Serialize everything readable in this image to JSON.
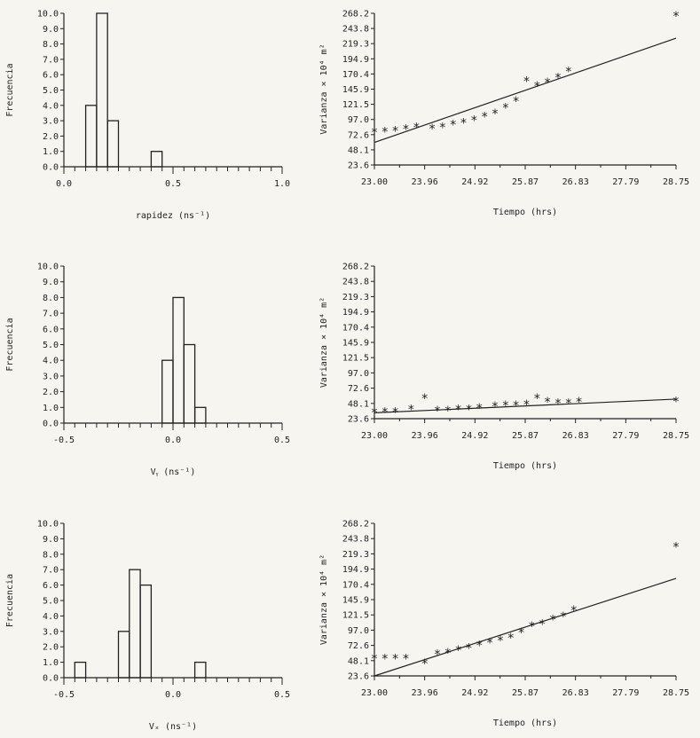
{
  "chart_data": [
    {
      "id": "h1",
      "type": "bar",
      "ylabel": "Frecuencia",
      "xlabel": "rapidez (ns⁻¹)",
      "xlim": [
        0.0,
        1.0
      ],
      "ylim": [
        0.0,
        10.0
      ],
      "xticks": [
        "0.0",
        "0.5",
        "1.0"
      ],
      "xtick_values": [
        0.0,
        0.5,
        1.0
      ],
      "yticks": [
        "0.0",
        "1.0",
        "2.0",
        "3.0",
        "4.0",
        "5.0",
        "6.0",
        "7.0",
        "8.0",
        "9.0",
        "10.0"
      ],
      "bin_width": 0.05,
      "bins": [
        {
          "x0": 0.1,
          "count": 4
        },
        {
          "x0": 0.15,
          "count": 10
        },
        {
          "x0": 0.2,
          "count": 3
        },
        {
          "x0": 0.4,
          "count": 1
        }
      ]
    },
    {
      "id": "s1",
      "type": "scatter",
      "ylabel": "Varianza × 10⁴ m²",
      "xlabel": "Tiempo (hrs)",
      "xlim": [
        23.0,
        28.75
      ],
      "ylim": [
        23.6,
        268.2
      ],
      "xticks": [
        "23.00",
        "23.96",
        "24.92",
        "25.87",
        "26.83",
        "27.79",
        "28.75"
      ],
      "yticks": [
        "23.6",
        "48.1",
        "72.6",
        "97.0",
        "121.5",
        "145.9",
        "170.4",
        "194.9",
        "219.3",
        "243.8",
        "268.2"
      ],
      "points": [
        [
          23.0,
          78
        ],
        [
          23.2,
          79
        ],
        [
          23.4,
          80
        ],
        [
          23.6,
          83
        ],
        [
          23.8,
          86
        ],
        [
          24.1,
          84
        ],
        [
          24.3,
          86
        ],
        [
          24.5,
          90
        ],
        [
          24.7,
          93
        ],
        [
          24.9,
          97
        ],
        [
          25.1,
          103
        ],
        [
          25.3,
          108
        ],
        [
          25.5,
          117
        ],
        [
          25.7,
          128
        ],
        [
          25.9,
          160
        ],
        [
          26.1,
          152
        ],
        [
          26.3,
          158
        ],
        [
          26.5,
          166
        ],
        [
          26.7,
          176
        ],
        [
          28.75,
          265
        ]
      ],
      "fit": [
        [
          23.0,
          60
        ],
        [
          28.75,
          228
        ]
      ]
    },
    {
      "id": "h2",
      "type": "bar",
      "ylabel": "Frecuencia",
      "xlabel": "Vᵧ (ns⁻¹)",
      "xlim": [
        -0.5,
        0.5
      ],
      "ylim": [
        0.0,
        10.0
      ],
      "xticks": [
        "-0.5",
        "0.0",
        "0.5"
      ],
      "xtick_values": [
        -0.5,
        0.0,
        0.5
      ],
      "yticks": [
        "0.0",
        "1.0",
        "2.0",
        "3.0",
        "4.0",
        "5.0",
        "6.0",
        "7.0",
        "8.0",
        "9.0",
        "10.0"
      ],
      "bin_width": 0.05,
      "bins": [
        {
          "x0": -0.05,
          "count": 4
        },
        {
          "x0": 0.0,
          "count": 8
        },
        {
          "x0": 0.05,
          "count": 5
        },
        {
          "x0": 0.1,
          "count": 1
        }
      ]
    },
    {
      "id": "s2",
      "type": "scatter",
      "ylabel": "Varianza × 10⁴ m²",
      "xlabel": "Tiempo (hrs)",
      "xlim": [
        23.0,
        28.75
      ],
      "ylim": [
        23.6,
        268.2
      ],
      "xticks": [
        "23.00",
        "23.96",
        "24.92",
        "25.87",
        "26.83",
        "27.79",
        "28.75"
      ],
      "yticks": [
        "23.6",
        "48.1",
        "72.6",
        "97.0",
        "121.5",
        "145.9",
        "170.4",
        "194.9",
        "219.3",
        "243.8",
        "268.2"
      ],
      "points": [
        [
          23.0,
          35
        ],
        [
          23.2,
          36
        ],
        [
          23.4,
          36
        ],
        [
          23.7,
          40
        ],
        [
          23.96,
          58
        ],
        [
          24.2,
          38
        ],
        [
          24.4,
          38
        ],
        [
          24.6,
          40
        ],
        [
          24.8,
          40
        ],
        [
          25.0,
          42
        ],
        [
          25.3,
          45
        ],
        [
          25.5,
          46
        ],
        [
          25.7,
          46
        ],
        [
          25.9,
          48
        ],
        [
          26.1,
          58
        ],
        [
          26.3,
          52
        ],
        [
          26.5,
          50
        ],
        [
          26.7,
          50
        ],
        [
          26.9,
          52
        ],
        [
          28.75,
          53
        ]
      ],
      "fit": [
        [
          23.0,
          33
        ],
        [
          28.75,
          55
        ]
      ]
    },
    {
      "id": "h3",
      "type": "bar",
      "ylabel": "Frecuencia",
      "xlabel": "Vₓ (ns⁻¹)",
      "xlim": [
        -0.5,
        0.5
      ],
      "ylim": [
        0.0,
        10.0
      ],
      "xticks": [
        "-0.5",
        "0.0",
        "0.5"
      ],
      "xtick_values": [
        -0.5,
        0.0,
        0.5
      ],
      "yticks": [
        "0.0",
        "1.0",
        "2.0",
        "3.0",
        "4.0",
        "5.0",
        "6.0",
        "7.0",
        "8.0",
        "9.0",
        "10.0"
      ],
      "bin_width": 0.05,
      "bins": [
        {
          "x0": -0.45,
          "count": 1
        },
        {
          "x0": -0.25,
          "count": 3
        },
        {
          "x0": -0.2,
          "count": 7
        },
        {
          "x0": -0.15,
          "count": 6
        },
        {
          "x0": 0.1,
          "count": 1
        }
      ]
    },
    {
      "id": "s3",
      "type": "scatter",
      "ylabel": "Varianza × 10⁴ m²",
      "xlabel": "Tiempo (hrs)",
      "xlim": [
        23.0,
        28.75
      ],
      "ylim": [
        23.6,
        268.2
      ],
      "xticks": [
        "23.00",
        "23.96",
        "24.92",
        "25.87",
        "26.83",
        "27.79",
        "28.75"
      ],
      "yticks": [
        "23.6",
        "48.1",
        "72.6",
        "97.0",
        "121.5",
        "145.9",
        "170.4",
        "194.9",
        "219.3",
        "243.8",
        "268.2"
      ],
      "points": [
        [
          23.0,
          53
        ],
        [
          23.2,
          53
        ],
        [
          23.4,
          53
        ],
        [
          23.6,
          53
        ],
        [
          23.96,
          45
        ],
        [
          24.2,
          60
        ],
        [
          24.4,
          62
        ],
        [
          24.6,
          66
        ],
        [
          24.8,
          70
        ],
        [
          25.0,
          74
        ],
        [
          25.2,
          78
        ],
        [
          25.4,
          82
        ],
        [
          25.6,
          86
        ],
        [
          25.8,
          95
        ],
        [
          26.0,
          105
        ],
        [
          26.2,
          108
        ],
        [
          26.4,
          115
        ],
        [
          26.6,
          120
        ],
        [
          26.8,
          130
        ],
        [
          28.75,
          232
        ]
      ],
      "fit": [
        [
          23.0,
          23.6
        ],
        [
          28.75,
          180
        ]
      ]
    }
  ]
}
